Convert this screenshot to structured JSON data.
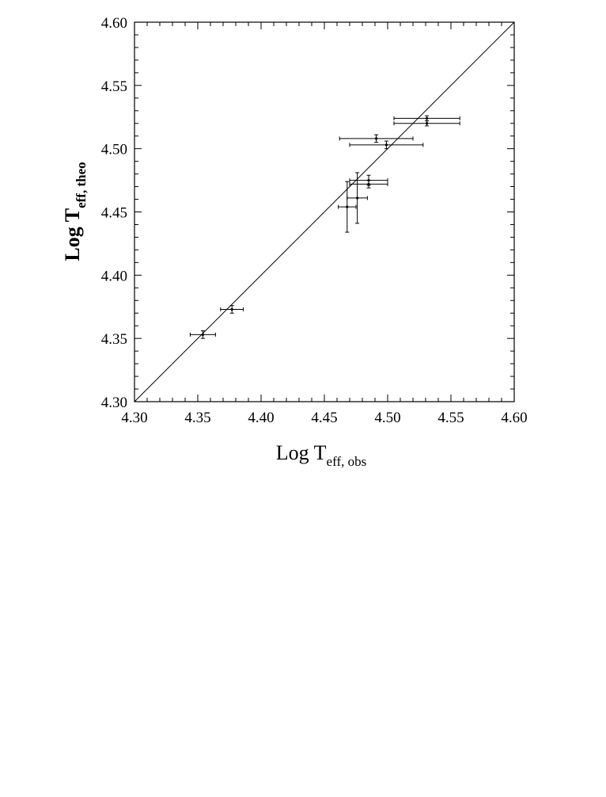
{
  "chart_data": {
    "type": "scatter",
    "title": "",
    "xlabel": {
      "main": "Log T",
      "sub": "eff, obs"
    },
    "ylabel": {
      "main": "Log T",
      "sub": "eff, theo"
    },
    "xlim": [
      4.3,
      4.6
    ],
    "ylim": [
      4.3,
      4.6
    ],
    "xticks": [
      "4.30",
      "4.35",
      "4.40",
      "4.45",
      "4.50",
      "4.55",
      "4.60"
    ],
    "yticks": [
      "4.30",
      "4.35",
      "4.40",
      "4.45",
      "4.50",
      "4.55",
      "4.60"
    ],
    "grid": false,
    "legend": "none",
    "reference_line": {
      "label": "",
      "x": [
        4.3,
        4.6
      ],
      "y": [
        4.3,
        4.6
      ]
    },
    "series": [
      {
        "points": [
          {
            "x": 4.354,
            "y": 4.353,
            "xerr": 0.01,
            "yerr": 0.003
          },
          {
            "x": 4.377,
            "y": 4.373,
            "xerr": 0.009,
            "yerr": 0.003
          },
          {
            "x": 4.468,
            "y": 4.454,
            "xerr": 0.007,
            "yerr": 0.02
          },
          {
            "x": 4.476,
            "y": 4.461,
            "xerr": 0.008,
            "yerr": 0.02
          },
          {
            "x": 4.485,
            "y": 4.472,
            "xerr": 0.015,
            "yerr": 0.003
          },
          {
            "x": 4.485,
            "y": 4.475,
            "xerr": 0.015,
            "yerr": 0.004
          },
          {
            "x": 4.491,
            "y": 4.508,
            "xerr": 0.029,
            "yerr": 0.003
          },
          {
            "x": 4.499,
            "y": 4.503,
            "xerr": 0.029,
            "yerr": 0.003
          },
          {
            "x": 4.531,
            "y": 4.52,
            "xerr": 0.026,
            "yerr": 0.002
          },
          {
            "x": 4.531,
            "y": 4.524,
            "xerr": 0.026,
            "yerr": 0.002
          }
        ]
      }
    ]
  }
}
